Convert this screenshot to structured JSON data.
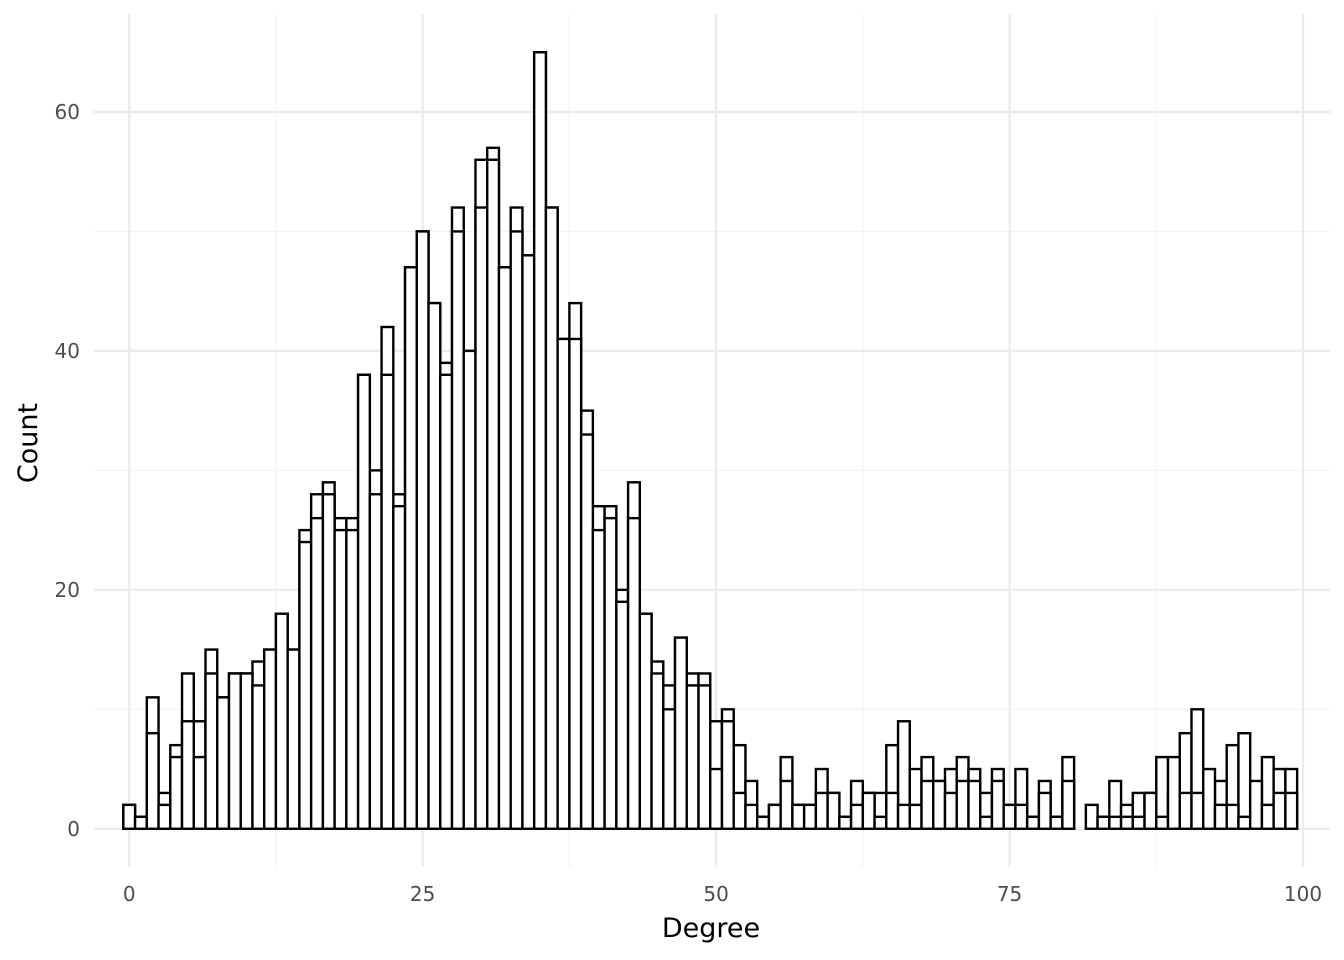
{
  "chart_data": {
    "type": "bar",
    "title": "",
    "xlabel": "Degree",
    "ylabel": "Count",
    "xlim": [
      -3.0,
      102.3
    ],
    "ylim": [
      -3.2,
      68.2
    ],
    "x_ticks": [
      0,
      25,
      50,
      75,
      100
    ],
    "x_tick_labels": [
      "0",
      "25",
      "50",
      "75",
      "100"
    ],
    "y_ticks": [
      0,
      20,
      40,
      60
    ],
    "y_tick_labels": [
      "0",
      "20",
      "40",
      "60"
    ],
    "grid": true,
    "legend": "none",
    "bin_width": 1,
    "series": [
      {
        "x": [
          0,
          1,
          2,
          3,
          4,
          5,
          6,
          7,
          8,
          9,
          10,
          11,
          12,
          13,
          14,
          15,
          16,
          17,
          18,
          19,
          20,
          21,
          22,
          23,
          24,
          25,
          26,
          27,
          28,
          29,
          30,
          31,
          32,
          33,
          34,
          35,
          36,
          37,
          38,
          39,
          40,
          41,
          42,
          43,
          44,
          45,
          46,
          47,
          48,
          49,
          50,
          51,
          52,
          53,
          54,
          55,
          56,
          57,
          58,
          59,
          60,
          61,
          62,
          63,
          64,
          65,
          66,
          67,
          68,
          69,
          70,
          71,
          72,
          73,
          74,
          75,
          76,
          77,
          78,
          79,
          80,
          81,
          82,
          83,
          84,
          85,
          86,
          87,
          88,
          89,
          90,
          91,
          92,
          93,
          94,
          95,
          96,
          97,
          98,
          99
        ],
        "values": [
          2,
          1,
          8,
          2,
          6,
          9,
          6,
          13,
          11,
          13,
          13,
          12,
          15,
          18,
          15,
          24,
          26,
          28,
          25,
          25,
          38,
          28,
          38,
          27,
          47,
          50,
          44,
          38,
          50,
          40,
          52,
          56,
          47,
          50,
          48,
          65,
          52,
          41,
          41,
          33,
          25,
          26,
          19,
          26,
          18,
          13,
          10,
          16,
          12,
          12,
          5,
          9,
          3,
          2,
          1,
          2,
          4,
          2,
          2,
          3,
          3,
          1,
          2,
          3,
          1,
          3,
          2,
          2,
          4,
          4,
          3,
          4,
          4,
          1,
          4,
          2,
          2,
          1,
          3,
          1,
          4,
          0,
          0,
          1,
          1,
          1,
          1,
          3,
          1,
          6,
          3,
          3,
          5,
          2,
          2,
          1,
          4,
          2,
          3,
          3
        ]
      },
      {
        "x": [
          0,
          1,
          2,
          3,
          4,
          5,
          6,
          7,
          8,
          9,
          10,
          11,
          12,
          13,
          14,
          15,
          16,
          17,
          18,
          19,
          20,
          21,
          22,
          23,
          24,
          25,
          26,
          27,
          28,
          29,
          30,
          31,
          32,
          33,
          34,
          35,
          36,
          37,
          38,
          39,
          40,
          41,
          42,
          43,
          44,
          45,
          46,
          47,
          48,
          49,
          50,
          51,
          52,
          53,
          54,
          55,
          56,
          57,
          58,
          59,
          60,
          61,
          62,
          63,
          64,
          65,
          66,
          67,
          68,
          69,
          70,
          71,
          72,
          73,
          74,
          75,
          76,
          77,
          78,
          79,
          80,
          81,
          82,
          83,
          84,
          85,
          86,
          87,
          88,
          89,
          90,
          91,
          92,
          93,
          94,
          95,
          96,
          97,
          98,
          99
        ],
        "values": [
          2,
          1,
          11,
          3,
          7,
          13,
          9,
          15,
          11,
          13,
          13,
          14,
          15,
          18,
          15,
          25,
          28,
          29,
          26,
          26,
          38,
          30,
          42,
          28,
          47,
          50,
          44,
          39,
          52,
          40,
          56,
          57,
          47,
          52,
          48,
          65,
          52,
          41,
          44,
          35,
          27,
          27,
          20,
          29,
          18,
          14,
          12,
          16,
          13,
          13,
          9,
          10,
          7,
          4,
          1,
          2,
          6,
          2,
          2,
          5,
          3,
          1,
          4,
          3,
          3,
          7,
          9,
          5,
          6,
          4,
          5,
          6,
          5,
          3,
          5,
          2,
          5,
          1,
          4,
          1,
          6,
          0,
          2,
          1,
          4,
          2,
          3,
          3,
          6,
          3,
          8,
          10,
          4,
          4,
          7,
          8,
          3,
          6,
          5,
          5
        ]
      }
    ]
  }
}
